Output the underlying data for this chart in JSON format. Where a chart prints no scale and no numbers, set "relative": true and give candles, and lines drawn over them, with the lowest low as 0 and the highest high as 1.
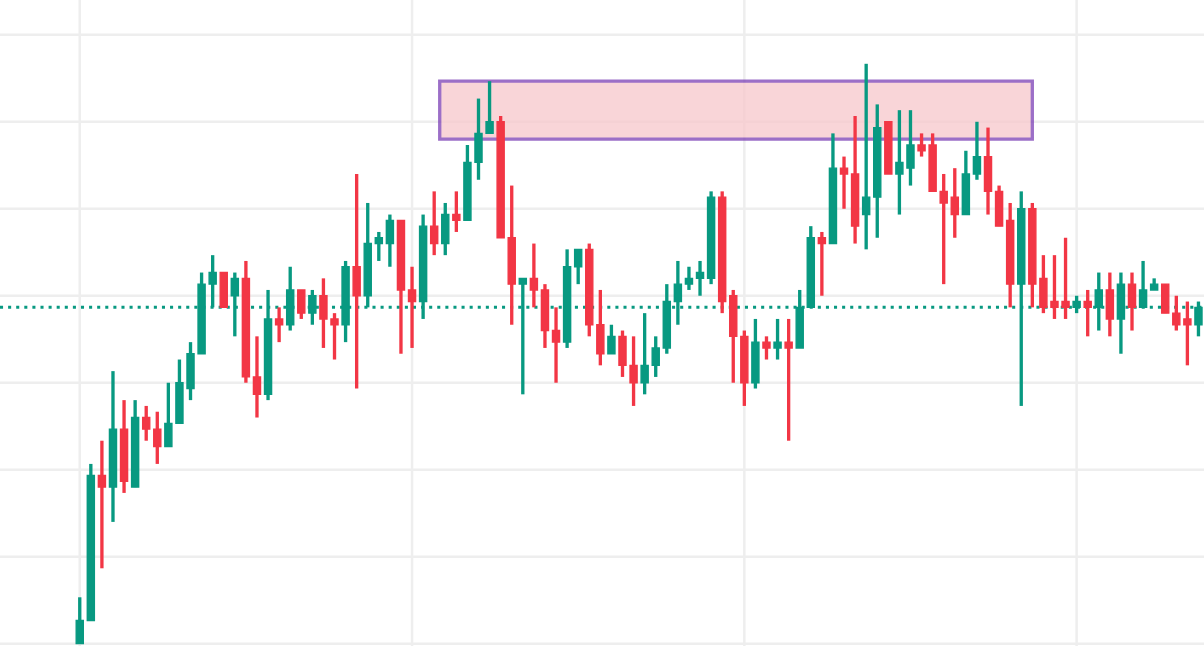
{
  "chart_data": {
    "type": "candlestick",
    "relative": true,
    "grid": true,
    "categories": [
      null,
      null,
      null,
      null,
      null,
      null,
      null,
      null,
      null,
      null,
      null,
      null,
      null,
      null,
      null,
      null,
      null,
      null,
      null,
      null,
      null,
      null,
      null,
      null,
      null,
      null,
      null,
      null,
      null,
      null,
      null,
      null,
      null,
      null,
      null,
      null,
      null,
      null,
      null,
      null,
      null,
      null,
      null,
      null,
      null,
      null,
      null,
      null,
      null,
      null,
      null,
      null,
      null,
      null,
      null,
      null,
      null,
      null,
      null,
      null,
      null,
      null,
      null,
      null,
      null,
      null,
      null,
      null,
      null,
      null,
      null,
      null,
      null,
      null,
      null,
      null,
      null,
      null,
      null,
      null,
      null,
      null,
      null,
      null,
      null,
      null,
      null,
      null,
      null,
      null,
      null,
      null,
      null,
      null,
      null,
      null,
      null,
      null,
      null,
      null,
      null,
      null
    ],
    "series": [
      {
        "colors": [
          "#089981",
          "#089981",
          "#f23645",
          "#089981",
          "#f23645",
          "#089981",
          "#f23645",
          "#f23645",
          "#089981",
          "#089981",
          "#089981",
          "#089981",
          "#089981",
          "#f23645",
          "#089981",
          "#f23645",
          "#f23645",
          "#089981",
          "#f23645",
          "#089981",
          "#f23645",
          "#089981",
          "#f23645",
          "#f23645",
          "#089981",
          "#f23645",
          "#089981",
          "#089981",
          "#089981",
          "#f23645",
          "#f23645",
          "#089981",
          "#f23645",
          "#089981",
          "#f23645",
          "#089981",
          "#089981",
          "#089981",
          "#f23645",
          "#f23645",
          "#089981",
          "#f23645",
          "#f23645",
          "#f23645",
          "#089981",
          "#089981",
          "#f23645",
          "#f23645",
          "#089981",
          "#f23645",
          "#f23645",
          "#089981",
          "#089981",
          "#089981",
          "#089981",
          "#089981",
          "#089981",
          "#089981",
          "#f23645",
          "#f23645",
          "#f23645",
          "#089981",
          "#f23645",
          "#089981",
          "#f23645",
          "#089981",
          "#089981",
          "#f23645",
          "#089981",
          "#f23645",
          "#f23645",
          "#089981",
          "#089981",
          "#f23645",
          "#089981",
          "#089981",
          "#f23645",
          "#f23645",
          "#f23645",
          "#f23645",
          "#089981",
          "#089981",
          "#f23645",
          "#f23645",
          "#f23645",
          "#089981",
          "#f23645",
          "#f23645",
          "#f23645",
          "#f23645",
          "#089981",
          "#f23645",
          "#089981",
          "#f23645",
          "#089981",
          "#f23645",
          "#089981",
          "#089981",
          "#f23645",
          "#f23645",
          "#f23645",
          "#089981"
        ],
        "ohlc": [
          [
            0,
            0.08,
            0,
            0.04
          ],
          [
            0.04,
            0.31,
            0.04,
            0.29
          ],
          [
            0.29,
            0.35,
            0.13,
            0.27
          ],
          [
            0.27,
            0.47,
            0.21,
            0.37
          ],
          [
            0.37,
            0.42,
            0.26,
            0.28
          ],
          [
            0.27,
            0.42,
            0.27,
            0.39
          ],
          [
            0.39,
            0.41,
            0.35,
            0.37
          ],
          [
            0.37,
            0.4,
            0.31,
            0.34
          ],
          [
            0.34,
            0.45,
            0.34,
            0.38
          ],
          [
            0.38,
            0.49,
            0.38,
            0.45
          ],
          [
            0.44,
            0.52,
            0.42,
            0.5
          ],
          [
            0.5,
            0.64,
            0.5,
            0.62
          ],
          [
            0.62,
            0.67,
            0.58,
            0.64
          ],
          [
            0.64,
            0.64,
            0.58,
            0.58
          ],
          [
            0.6,
            0.64,
            0.53,
            0.63
          ],
          [
            0.63,
            0.66,
            0.45,
            0.46
          ],
          [
            0.46,
            0.53,
            0.39,
            0.43
          ],
          [
            0.43,
            0.61,
            0.42,
            0.56
          ],
          [
            0.56,
            0.58,
            0.52,
            0.55
          ],
          [
            0.55,
            0.65,
            0.54,
            0.61
          ],
          [
            0.61,
            0.61,
            0.56,
            0.57
          ],
          [
            0.57,
            0.61,
            0.55,
            0.6
          ],
          [
            0.6,
            0.63,
            0.51,
            0.56
          ],
          [
            0.56,
            0.57,
            0.49,
            0.55
          ],
          [
            0.55,
            0.66,
            0.52,
            0.65
          ],
          [
            0.65,
            0.81,
            0.44,
            0.6
          ],
          [
            0.6,
            0.76,
            0.58,
            0.69
          ],
          [
            0.69,
            0.71,
            0.66,
            0.7
          ],
          [
            0.69,
            0.74,
            0.65,
            0.73
          ],
          [
            0.73,
            0.73,
            0.5,
            0.61
          ],
          [
            0.61,
            0.65,
            0.51,
            0.59
          ],
          [
            0.59,
            0.74,
            0.56,
            0.72
          ],
          [
            0.72,
            0.78,
            0.67,
            0.69
          ],
          [
            0.69,
            0.76,
            0.67,
            0.74
          ],
          [
            0.74,
            0.78,
            0.71,
            0.73
          ],
          [
            0.73,
            0.86,
            0.73,
            0.83
          ],
          [
            0.83,
            0.94,
            0.8,
            0.88
          ],
          [
            0.88,
            0.97,
            0.88,
            0.9
          ],
          [
            0.9,
            0.91,
            0.7,
            0.7
          ],
          [
            0.7,
            0.79,
            0.55,
            0.62
          ],
          [
            0.62,
            0.63,
            0.43,
            0.63
          ],
          [
            0.63,
            0.69,
            0.58,
            0.61
          ],
          [
            0.61,
            0.62,
            0.51,
            0.54
          ],
          [
            0.54,
            0.58,
            0.45,
            0.52
          ],
          [
            0.52,
            0.68,
            0.51,
            0.65
          ],
          [
            0.65,
            0.68,
            0.62,
            0.68
          ],
          [
            0.68,
            0.69,
            0.53,
            0.55
          ],
          [
            0.55,
            0.61,
            0.48,
            0.5
          ],
          [
            0.5,
            0.55,
            0.5,
            0.53
          ],
          [
            0.53,
            0.54,
            0.46,
            0.48
          ],
          [
            0.48,
            0.53,
            0.41,
            0.45
          ],
          [
            0.45,
            0.57,
            0.43,
            0.48
          ],
          [
            0.48,
            0.53,
            0.46,
            0.51
          ],
          [
            0.51,
            0.62,
            0.5,
            0.59
          ],
          [
            0.59,
            0.66,
            0.55,
            0.62
          ],
          [
            0.62,
            0.65,
            0.61,
            0.63
          ],
          [
            0.63,
            0.66,
            0.6,
            0.64
          ],
          [
            0.63,
            0.78,
            0.62,
            0.77
          ],
          [
            0.77,
            0.78,
            0.57,
            0.59
          ],
          [
            0.6,
            0.61,
            0.45,
            0.53
          ],
          [
            0.53,
            0.54,
            0.41,
            0.45
          ],
          [
            0.45,
            0.56,
            0.44,
            0.52
          ],
          [
            0.52,
            0.53,
            0.49,
            0.51
          ],
          [
            0.51,
            0.56,
            0.49,
            0.52
          ],
          [
            0.52,
            0.56,
            0.35,
            0.51
          ],
          [
            0.51,
            0.61,
            0.51,
            0.58
          ],
          [
            0.58,
            0.72,
            0.58,
            0.7
          ],
          [
            0.7,
            0.71,
            0.6,
            0.69
          ],
          [
            0.69,
            0.88,
            0.69,
            0.82
          ],
          [
            0.82,
            0.84,
            0.75,
            0.81
          ],
          [
            0.81,
            0.91,
            0.69,
            0.72
          ],
          [
            0.74,
            1.0,
            0.68,
            0.77
          ],
          [
            0.77,
            0.93,
            0.7,
            0.89
          ],
          [
            0.9,
            0.9,
            0.81,
            0.81
          ],
          [
            0.81,
            0.92,
            0.74,
            0.83
          ],
          [
            0.82,
            0.92,
            0.79,
            0.86
          ],
          [
            0.86,
            0.88,
            0.84,
            0.85
          ],
          [
            0.86,
            0.88,
            0.78,
            0.78
          ],
          [
            0.78,
            0.81,
            0.62,
            0.76
          ],
          [
            0.77,
            0.82,
            0.7,
            0.74
          ],
          [
            0.74,
            0.85,
            0.74,
            0.81
          ],
          [
            0.81,
            0.9,
            0.8,
            0.84
          ],
          [
            0.84,
            0.89,
            0.74,
            0.78
          ],
          [
            0.78,
            0.79,
            0.72,
            0.72
          ],
          [
            0.73,
            0.76,
            0.58,
            0.62
          ],
          [
            0.62,
            0.78,
            0.41,
            0.75
          ],
          [
            0.75,
            0.76,
            0.58,
            0.62
          ],
          [
            0.63,
            0.67,
            0.57,
            0.58
          ],
          [
            0.59,
            0.67,
            0.56,
            0.58
          ],
          [
            0.59,
            0.7,
            0.56,
            0.58
          ],
          [
            0.58,
            0.6,
            0.57,
            0.59
          ],
          [
            0.59,
            0.61,
            0.53,
            0.58
          ],
          [
            0.58,
            0.64,
            0.54,
            0.61
          ],
          [
            0.61,
            0.64,
            0.53,
            0.56
          ],
          [
            0.56,
            0.64,
            0.5,
            0.62
          ],
          [
            0.62,
            0.64,
            0.54,
            0.58
          ],
          [
            0.58,
            0.66,
            0.58,
            0.61
          ],
          [
            0.61,
            0.63,
            0.61,
            0.62
          ],
          [
            0.62,
            0.62,
            0.57,
            0.57
          ],
          [
            0.57,
            0.6,
            0.54,
            0.55
          ],
          [
            0.56,
            0.59,
            0.48,
            0.55
          ],
          [
            0.55,
            0.59,
            0.53,
            0.58
          ]
        ]
      }
    ],
    "ref_lines": [
      {
        "axis": "y",
        "value": 0.58,
        "color": "#089981",
        "line_style": "dotted"
      }
    ]
  }
}
